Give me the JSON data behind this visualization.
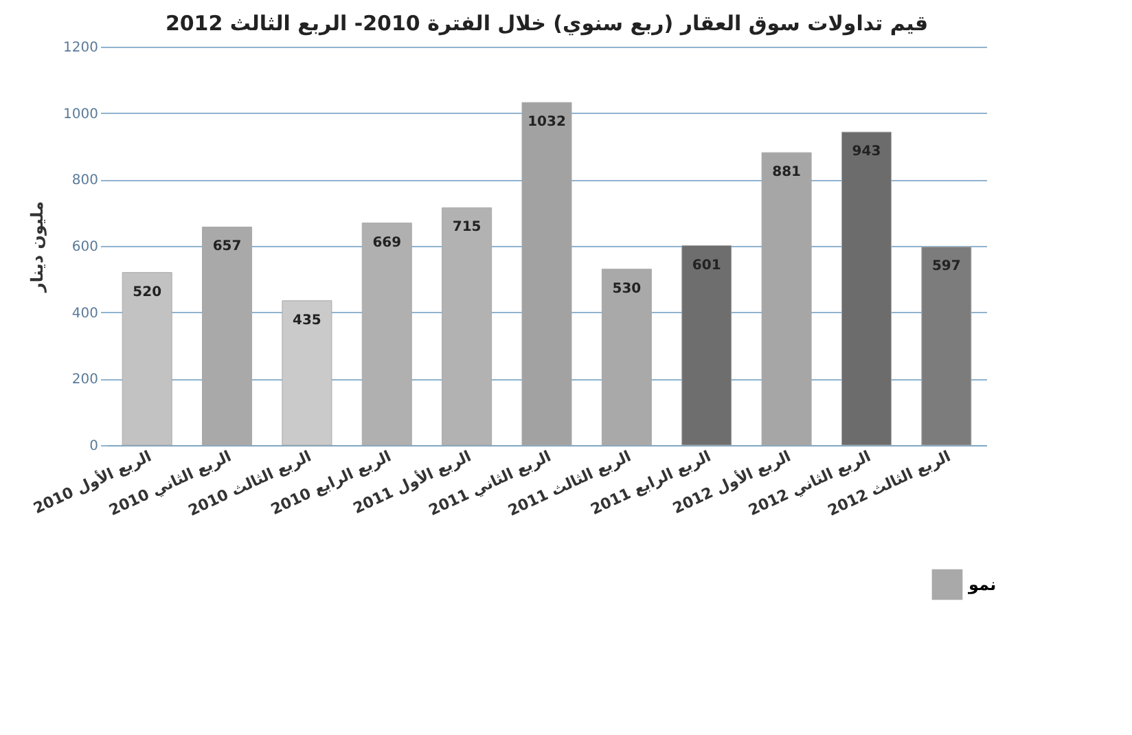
{
  "chart_data": {
    "type": "bar",
    "title": "قيم تداولات سوق العقار (ربع سنوي) خلال الفترة 2010- الربع الثالث 2012",
    "ylabel": "مليون دينار",
    "categories": [
      "الربع الأول 2010",
      "الربع الثاني 2010",
      "الربع الثالث 2010",
      "الربع الرابع 2010",
      "الربع الأول 2011",
      "الربع الثاني 2011",
      "الربع الثالث 2011",
      "الربع الرابع 2011",
      "الربع الأول 2012",
      "الربع الثاني 2012",
      "الربع الثالث 2012"
    ],
    "series": [
      {
        "name": "نمو",
        "values": [
          520,
          657,
          435,
          669,
          715,
          1032,
          530,
          601,
          881,
          943,
          597
        ]
      }
    ],
    "colors": [
      "#c2c2c2",
      "#a9a9a9",
      "#cacaca",
      "#b0b0b0",
      "#b2b2b2",
      "#a2a2a2",
      "#a9a9a9",
      "#6e6e6e",
      "#a6a6a6",
      "#6c6c6c",
      "#7c7c7c"
    ],
    "ylim": [
      0,
      1200
    ],
    "yticks": [
      0,
      200,
      400,
      600,
      800,
      1000,
      1200
    ],
    "grid": "y",
    "data_labels": true,
    "legend": "bottom right"
  }
}
